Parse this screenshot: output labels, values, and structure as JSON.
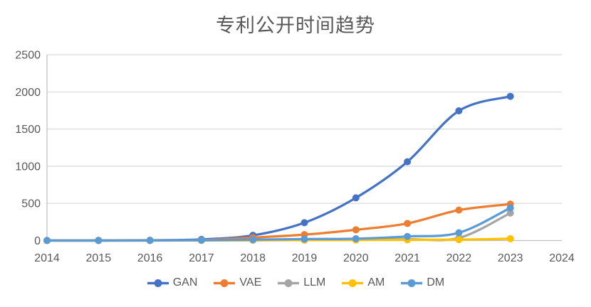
{
  "title": "专利公开时间趋势",
  "chart_data": {
    "type": "line",
    "x": [
      2014,
      2015,
      2016,
      2017,
      2018,
      2019,
      2020,
      2021,
      2022,
      2023
    ],
    "x_axis_ticks": [
      2014,
      2015,
      2016,
      2017,
      2018,
      2019,
      2020,
      2021,
      2022,
      2023,
      2024
    ],
    "series": [
      {
        "name": "GAN",
        "color": "#4472C4",
        "values": [
          2,
          3,
          5,
          15,
          70,
          240,
          575,
          1060,
          1745,
          1940
        ]
      },
      {
        "name": "VAE",
        "color": "#ED7D31",
        "values": [
          0,
          0,
          1,
          6,
          40,
          80,
          145,
          230,
          410,
          490
        ]
      },
      {
        "name": "LLM",
        "color": "#A5A5A5",
        "values": [
          0,
          0,
          0,
          1,
          4,
          6,
          10,
          18,
          35,
          370
        ]
      },
      {
        "name": "AM",
        "color": "#FFC000",
        "values": [
          0,
          0,
          1,
          3,
          5,
          6,
          8,
          10,
          12,
          25
        ]
      },
      {
        "name": "DM",
        "color": "#5B9BD5",
        "values": [
          0,
          0,
          1,
          5,
          12,
          20,
          25,
          55,
          105,
          440
        ]
      }
    ],
    "ylim": [
      0,
      2500
    ],
    "y_ticks": [
      0,
      500,
      1000,
      1500,
      2000,
      2500
    ],
    "grid": true,
    "legend_position": "bottom",
    "line_style": "smooth",
    "marker": "circle"
  },
  "colors": {
    "background": "#FFFFFF",
    "title_text": "#595959",
    "axis_text": "#595959",
    "gridline": "#D9D9D9",
    "axis_line": "#BFBFBF"
  }
}
